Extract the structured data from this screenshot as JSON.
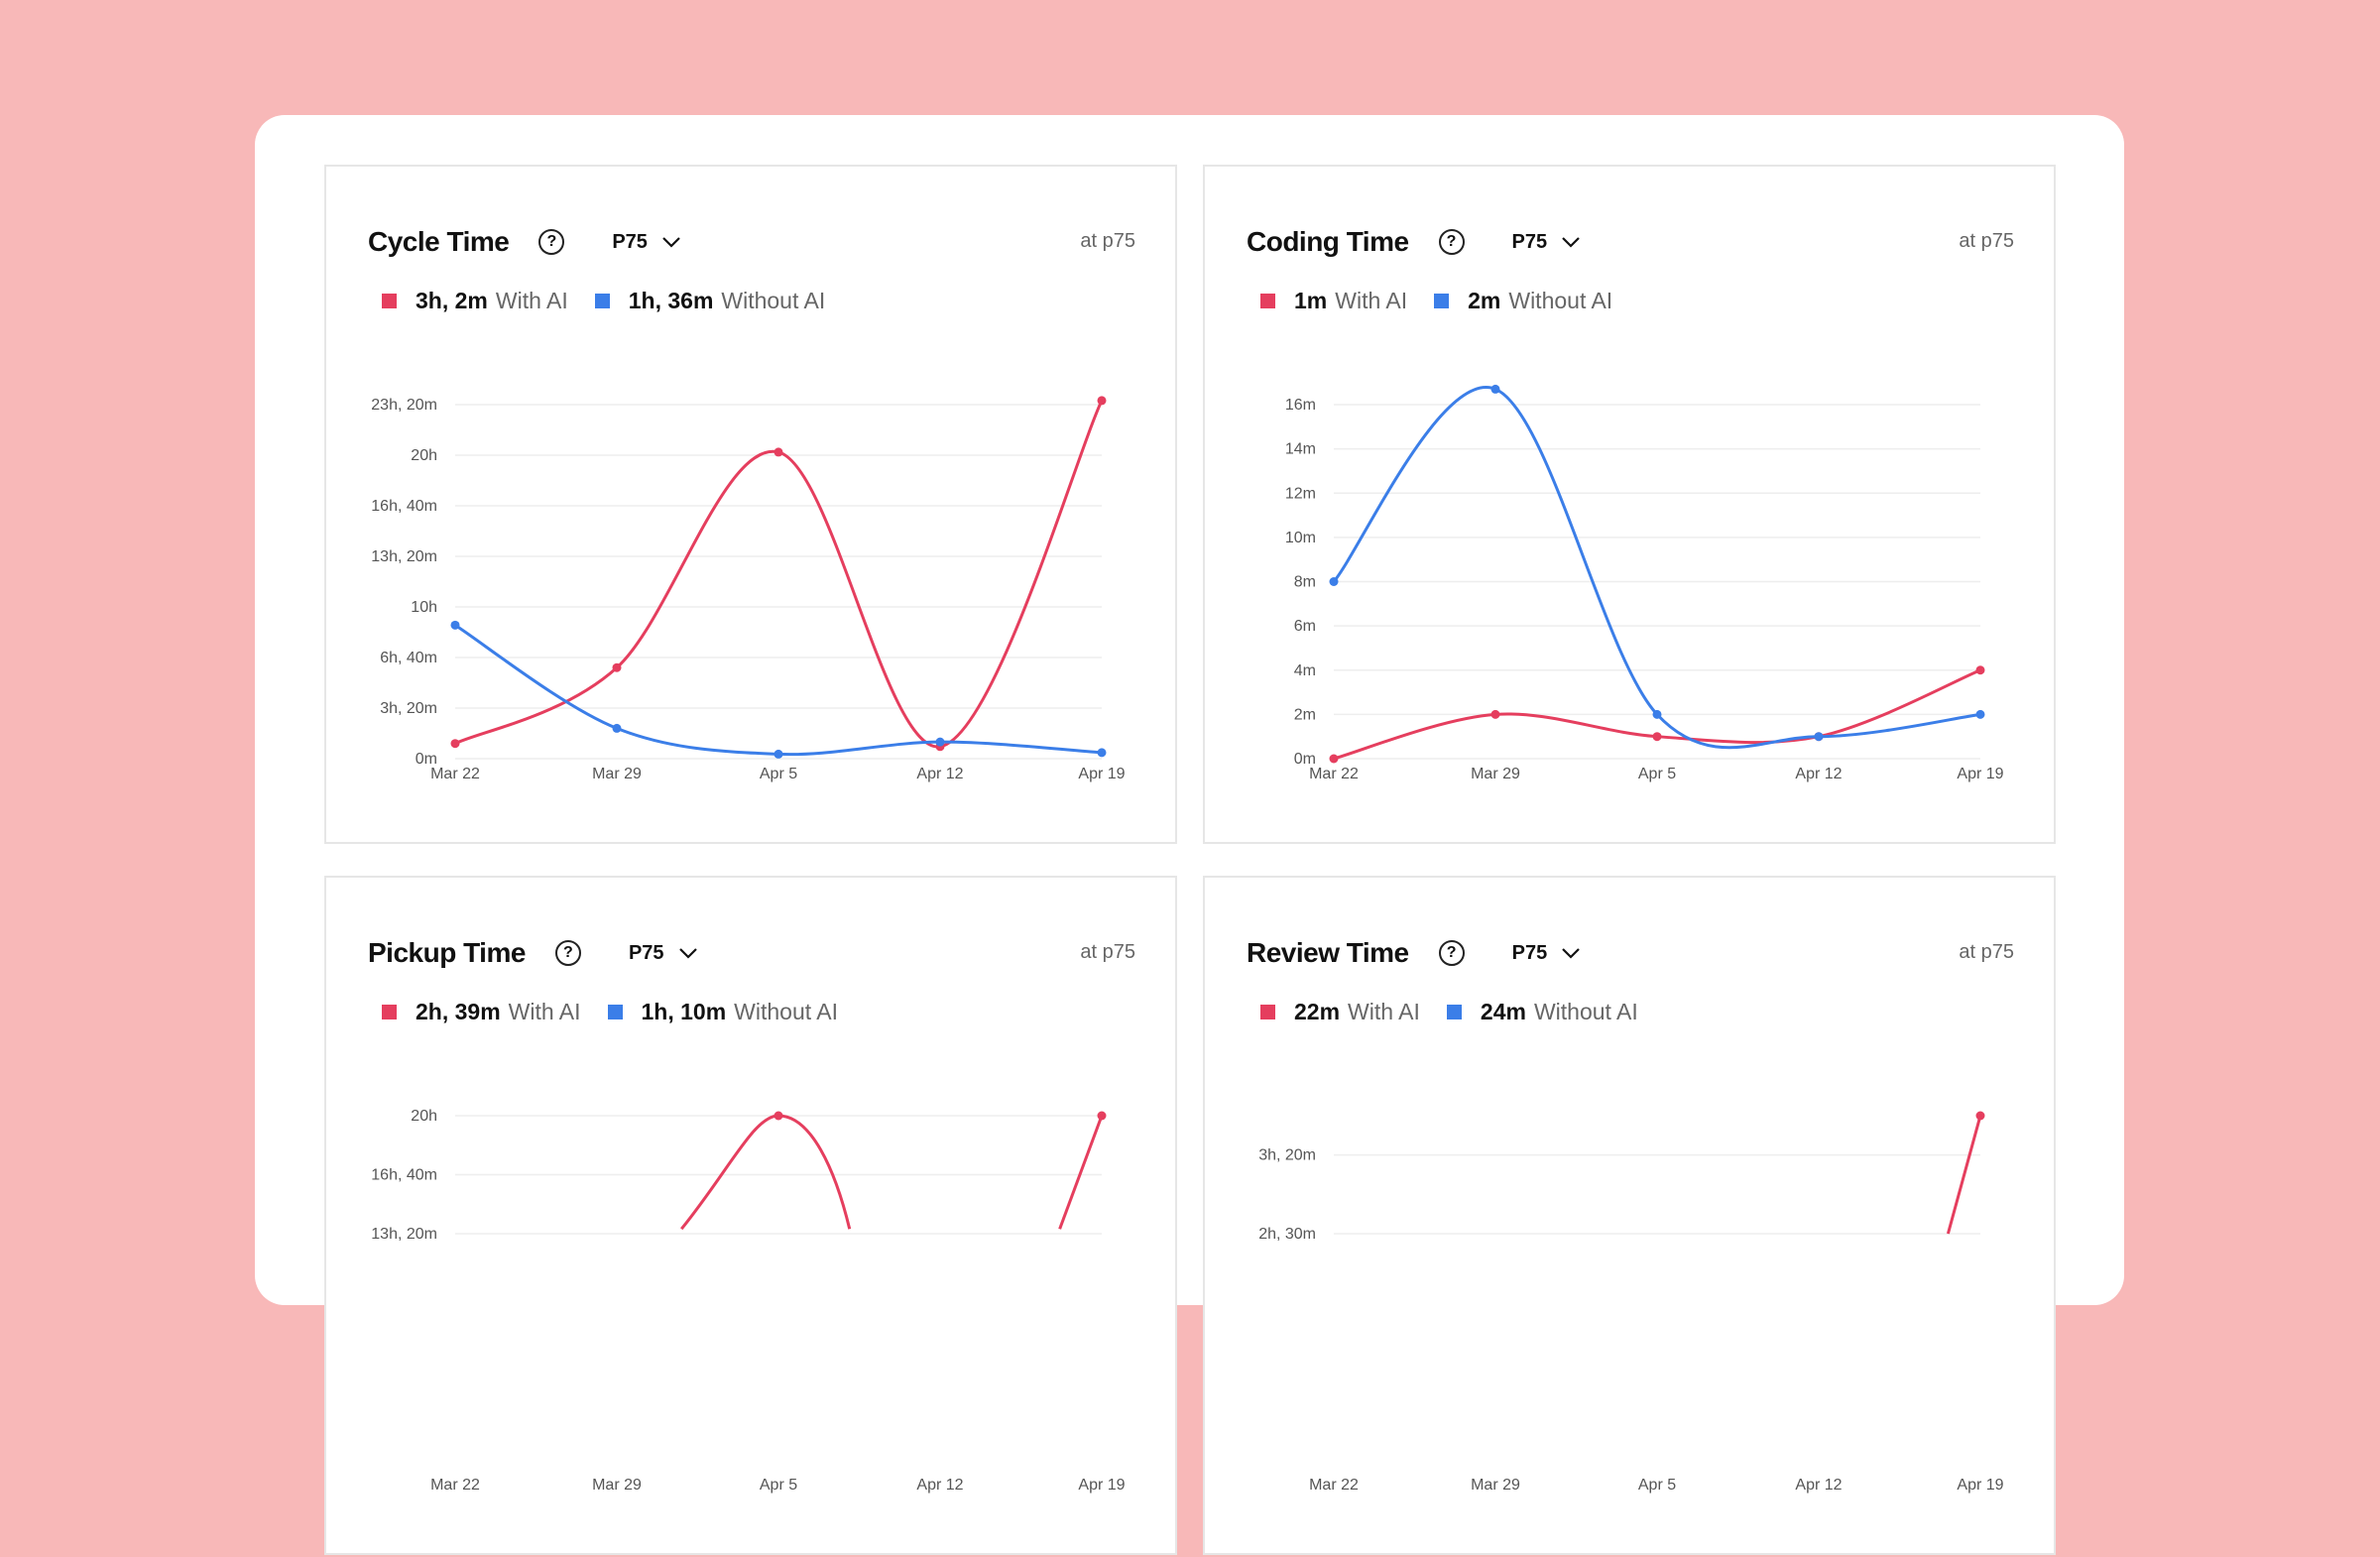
{
  "colors": {
    "with_ai": "#e53e5e",
    "without_ai": "#3b7ee8"
  },
  "panels": [
    {
      "title": "Cycle Time",
      "selector": "P75",
      "at_label": "at p75",
      "legend": [
        {
          "value": "3h, 2m",
          "label": "With AI"
        },
        {
          "value": "1h, 36m",
          "label": "Without AI"
        }
      ]
    },
    {
      "title": "Coding Time",
      "selector": "P75",
      "at_label": "at p75",
      "legend": [
        {
          "value": "1m",
          "label": "With AI"
        },
        {
          "value": "2m",
          "label": "Without AI"
        }
      ]
    },
    {
      "title": "Pickup Time",
      "selector": "P75",
      "at_label": "at p75",
      "legend": [
        {
          "value": "2h, 39m",
          "label": "With AI"
        },
        {
          "value": "1h, 10m",
          "label": "Without AI"
        }
      ]
    },
    {
      "title": "Review Time",
      "selector": "P75",
      "at_label": "at p75",
      "legend": [
        {
          "value": "22m",
          "label": "With AI"
        },
        {
          "value": "24m",
          "label": "Without AI"
        }
      ]
    }
  ],
  "chart_data": [
    {
      "type": "line",
      "title": "Cycle Time",
      "categories": [
        "Mar 22",
        "Mar 29",
        "Apr 5",
        "Apr 12",
        "Apr 19"
      ],
      "y_unit": "hours",
      "ylim": [
        0,
        23.333
      ],
      "yticks": [
        {
          "value": 0,
          "label": "0m"
        },
        {
          "value": 3.333,
          "label": "3h, 20m"
        },
        {
          "value": 6.667,
          "label": "6h, 40m"
        },
        {
          "value": 10,
          "label": "10h"
        },
        {
          "value": 13.333,
          "label": "13h, 20m"
        },
        {
          "value": 16.667,
          "label": "16h, 40m"
        },
        {
          "value": 20,
          "label": "20h"
        },
        {
          "value": 23.333,
          "label": "23h, 20m"
        }
      ],
      "series": [
        {
          "name": "With AI",
          "values": [
            1.0,
            6.0,
            20.2,
            0.8,
            23.6
          ]
        },
        {
          "name": "Without AI",
          "values": [
            8.8,
            2.0,
            0.3,
            1.1,
            0.4
          ]
        }
      ]
    },
    {
      "type": "line",
      "title": "Coding Time",
      "categories": [
        "Mar 22",
        "Mar 29",
        "Apr 5",
        "Apr 12",
        "Apr 19"
      ],
      "y_unit": "minutes",
      "ylim": [
        0,
        16
      ],
      "yticks": [
        {
          "value": 0,
          "label": "0m"
        },
        {
          "value": 2,
          "label": "2m"
        },
        {
          "value": 4,
          "label": "4m"
        },
        {
          "value": 6,
          "label": "6m"
        },
        {
          "value": 8,
          "label": "8m"
        },
        {
          "value": 10,
          "label": "10m"
        },
        {
          "value": 12,
          "label": "12m"
        },
        {
          "value": 14,
          "label": "14m"
        },
        {
          "value": 16,
          "label": "16m"
        }
      ],
      "series": [
        {
          "name": "With AI",
          "values": [
            0,
            2.0,
            1.0,
            1.0,
            4.0
          ]
        },
        {
          "name": "Without AI",
          "values": [
            8.0,
            16.7,
            2.0,
            1.0,
            2.0
          ]
        }
      ]
    },
    {
      "type": "line",
      "title": "Pickup Time",
      "categories": [
        "Mar 22",
        "Mar 29",
        "Apr 5",
        "Apr 12",
        "Apr 19"
      ],
      "y_unit": "hours",
      "ylim": [
        0,
        20
      ],
      "yticks": [
        {
          "value": 13.333,
          "label": "13h, 20m"
        },
        {
          "value": 16.667,
          "label": "16h, 40m"
        },
        {
          "value": 20,
          "label": "20h"
        }
      ],
      "series": [
        {
          "name": "With AI",
          "values": [
            null,
            null,
            20.0,
            null,
            20.0
          ]
        }
      ]
    },
    {
      "type": "line",
      "title": "Review Time",
      "categories": [
        "Mar 22",
        "Mar 29",
        "Apr 5",
        "Apr 12",
        "Apr 19"
      ],
      "y_unit": "minutes",
      "ylim": [
        0,
        225
      ],
      "yticks": [
        {
          "value": 150,
          "label": "2h, 30m"
        },
        {
          "value": 200,
          "label": "3h, 20m"
        }
      ],
      "series": [
        {
          "name": "With AI",
          "values": [
            null,
            null,
            null,
            null,
            225
          ]
        }
      ]
    }
  ]
}
